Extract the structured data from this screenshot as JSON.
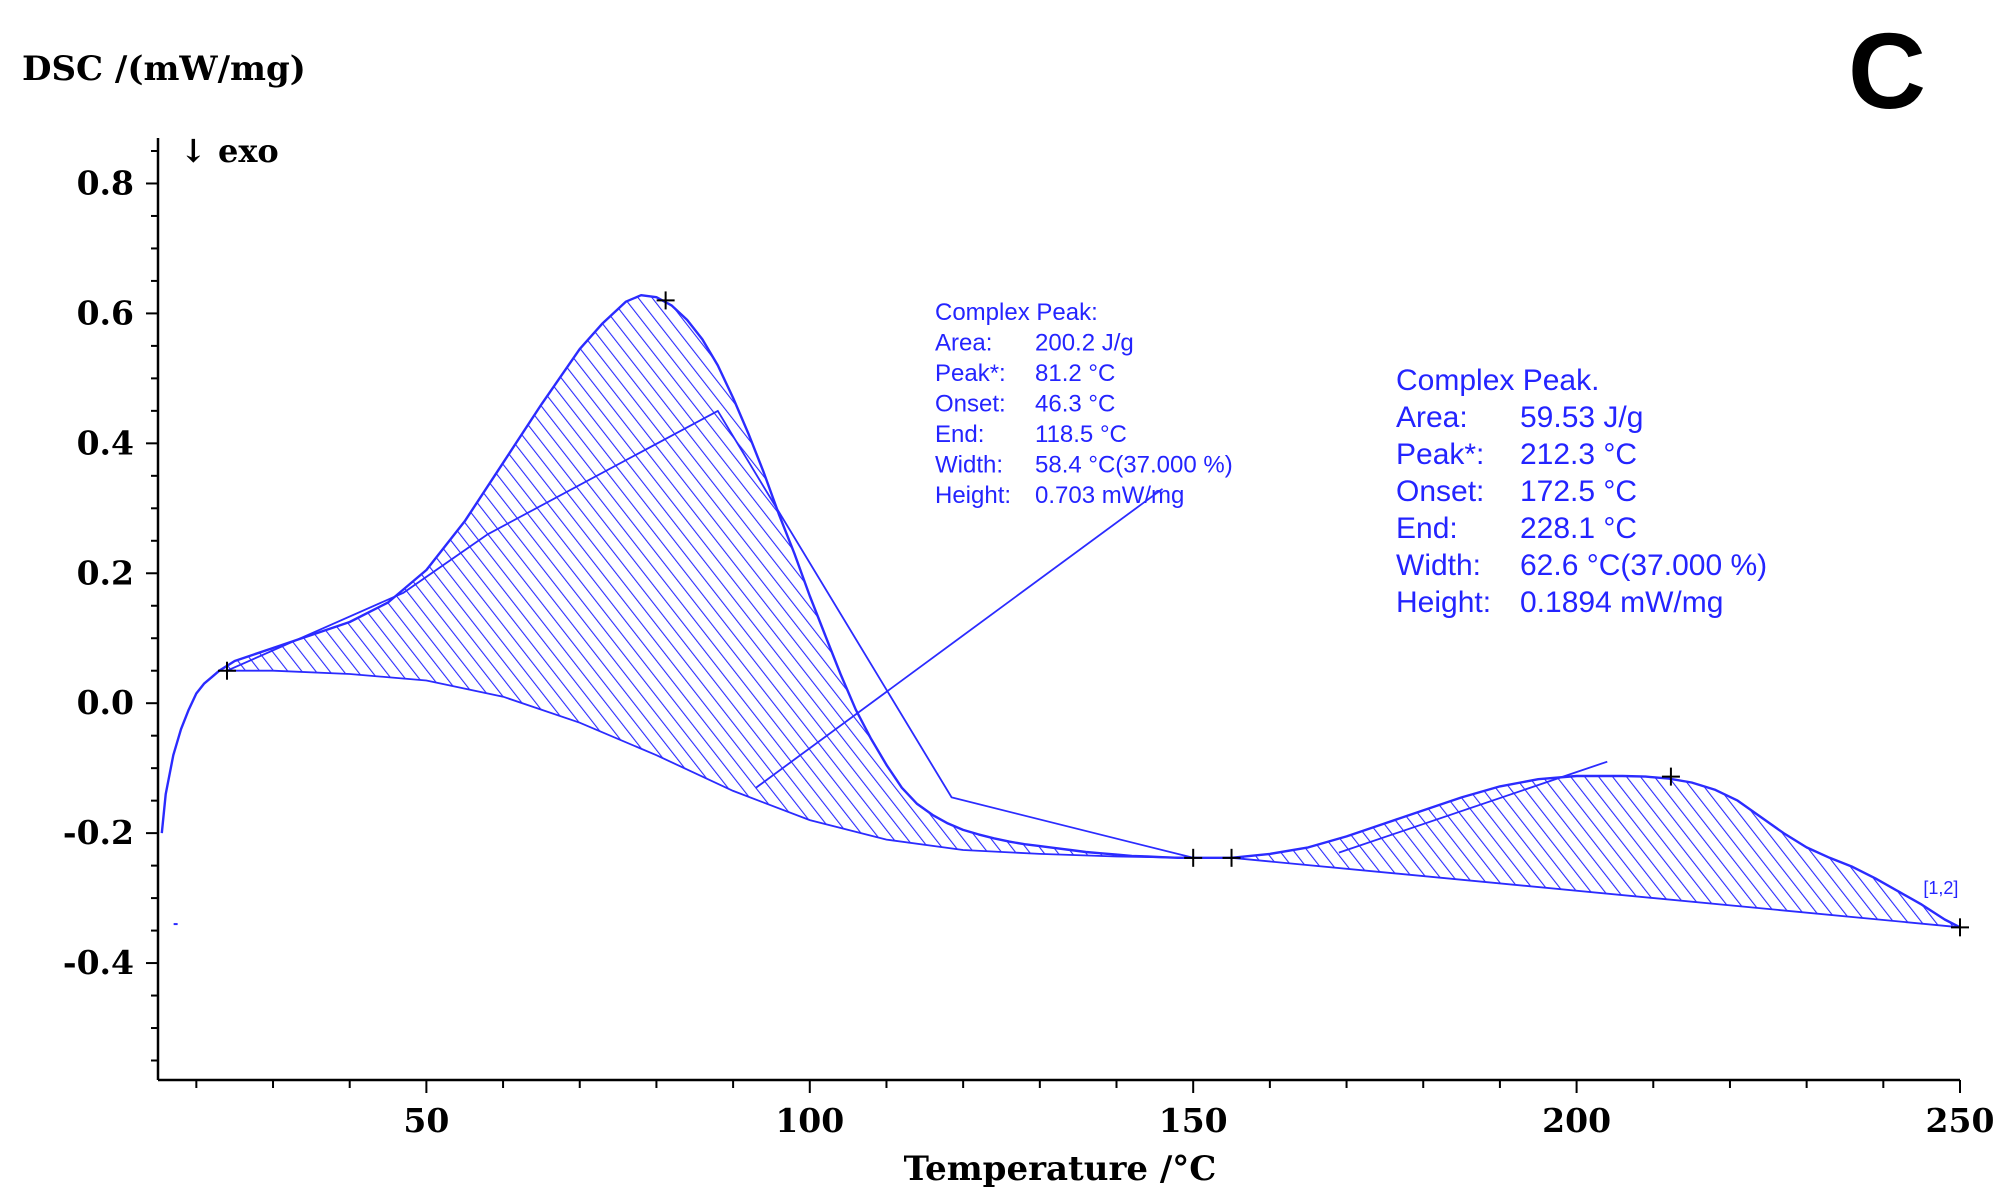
{
  "chart_data": {
    "type": "line",
    "panel_label": "C",
    "title": "",
    "ylabel": "DSC /(mW/mg)",
    "xlabel": "Temperature /°C",
    "exo_marker": "↓ exo",
    "xlim": [
      15,
      250
    ],
    "ylim": [
      -0.58,
      0.87
    ],
    "x_ticks": [
      50,
      100,
      150,
      200,
      250
    ],
    "x_tick_labels": [
      "50",
      "100",
      "150",
      "200",
      "250"
    ],
    "x_minor_step": 10,
    "y_ticks": [
      0.8,
      0.6,
      0.4,
      0.2,
      0.0,
      -0.2,
      -0.4
    ],
    "y_tick_labels": [
      "0.8",
      "0.6",
      "0.4",
      "0.2",
      "0.0",
      "-0.2",
      "-0.4"
    ],
    "y_minor_step": 0.05,
    "line_color": "#2b2bff",
    "text_color": "#2424ff",
    "axis_color": "#000000",
    "series": [
      {
        "name": "DSC curve",
        "x": [
          15.5,
          16,
          17,
          18,
          19,
          20,
          21,
          22,
          23,
          25,
          30,
          35,
          40,
          45,
          50,
          55,
          60,
          65,
          70,
          73,
          76,
          78,
          80,
          82,
          84,
          86,
          88,
          90,
          92,
          94,
          96,
          98,
          100,
          102,
          104,
          106,
          108,
          110,
          112,
          114,
          116,
          118,
          120,
          122,
          124,
          126,
          128,
          130,
          132,
          134,
          136,
          138,
          140,
          142,
          144,
          146,
          148,
          150,
          152,
          155,
          160,
          165,
          170,
          175,
          180,
          185,
          190,
          195,
          200,
          203,
          206,
          209,
          212,
          215,
          218,
          221,
          224,
          227,
          230,
          233,
          236,
          239,
          242,
          245,
          248,
          250
        ],
        "y": [
          -0.2,
          -0.14,
          -0.08,
          -0.04,
          -0.01,
          0.015,
          0.03,
          0.04,
          0.05,
          0.065,
          0.085,
          0.105,
          0.125,
          0.155,
          0.205,
          0.28,
          0.37,
          0.46,
          0.545,
          0.585,
          0.618,
          0.628,
          0.625,
          0.612,
          0.59,
          0.56,
          0.52,
          0.47,
          0.415,
          0.355,
          0.29,
          0.23,
          0.165,
          0.105,
          0.045,
          -0.01,
          -0.055,
          -0.095,
          -0.13,
          -0.155,
          -0.172,
          -0.185,
          -0.195,
          -0.202,
          -0.208,
          -0.213,
          -0.217,
          -0.22,
          -0.223,
          -0.226,
          -0.229,
          -0.231,
          -0.233,
          -0.235,
          -0.236,
          -0.237,
          -0.238,
          -0.238,
          -0.238,
          -0.238,
          -0.232,
          -0.222,
          -0.205,
          -0.185,
          -0.165,
          -0.145,
          -0.128,
          -0.117,
          -0.112,
          -0.112,
          -0.112,
          -0.113,
          -0.116,
          -0.122,
          -0.133,
          -0.15,
          -0.175,
          -0.2,
          -0.222,
          -0.238,
          -0.252,
          -0.27,
          -0.29,
          -0.31,
          -0.333,
          -0.345
        ]
      }
    ],
    "baselines": [
      {
        "name": "Peak 1 baseline",
        "x": [
          24,
          30,
          40,
          50,
          60,
          70,
          80,
          90,
          100,
          110,
          120,
          130,
          140,
          150
        ],
        "y": [
          0.05,
          0.05,
          0.045,
          0.035,
          0.01,
          -0.03,
          -0.08,
          -0.135,
          -0.18,
          -0.21,
          -0.226,
          -0.232,
          -0.236,
          -0.238
        ]
      },
      {
        "name": "Peak 1 partition",
        "x": [
          24,
          47,
          58,
          88,
          118.5,
          150
        ],
        "y": [
          0.05,
          0.17,
          0.26,
          0.45,
          -0.145,
          -0.238
        ]
      },
      {
        "name": "Peak 2 baseline",
        "x": [
          155,
          250
        ],
        "y": [
          -0.238,
          -0.345
        ]
      }
    ],
    "shaded_regions": [
      {
        "name": "Peak 1 area",
        "x_from": 24,
        "x_to": 150
      },
      {
        "name": "Peak 2 area",
        "x_from": 155,
        "x_to": 250
      }
    ],
    "markers": [
      {
        "label": "peak-1-start",
        "x": 24,
        "y": 0.05
      },
      {
        "label": "peak-1-max",
        "x": 81.2,
        "y": 0.62
      },
      {
        "label": "peak-1-end",
        "x": 150,
        "y": -0.238
      },
      {
        "label": "peak-2-start",
        "x": 155,
        "y": -0.238
      },
      {
        "label": "peak-2-max",
        "x": 212.3,
        "y": -0.113
      },
      {
        "label": "peak-2-end",
        "x": 250,
        "y": -0.345
      }
    ],
    "stray_marks": [
      {
        "x": 17.3,
        "y": -0.34
      }
    ],
    "annotations": [
      {
        "name": "complex-peak-1",
        "lines": [
          {
            "label": "Complex Peak:",
            "value": ""
          },
          {
            "label": "Area:",
            "value": "200.2 J/g"
          },
          {
            "label": "Peak*:",
            "value": "81.2 °C"
          },
          {
            "label": "Onset:",
            "value": "46.3 °C"
          },
          {
            "label": "End:",
            "value": "118.5 °C"
          },
          {
            "label": "Width:",
            "value": "58.4 °C(37.000 %)"
          },
          {
            "label": "Height:",
            "value": "0.703 mW/mg"
          }
        ],
        "leader_from": [
          146,
          0.33
        ],
        "leader_to": [
          93,
          -0.13
        ]
      },
      {
        "name": "complex-peak-2",
        "lines": [
          {
            "label": "Complex Peak.",
            "value": ""
          },
          {
            "label": "Area:",
            "value": "59.53 J/g"
          },
          {
            "label": "Peak*:",
            "value": "212.3 °C"
          },
          {
            "label": "Onset:",
            "value": "172.5 °C"
          },
          {
            "label": "End:",
            "value": "228.1 °C"
          },
          {
            "label": "Width:",
            "value": "62.6 °C(37.000 %)"
          },
          {
            "label": "Height:",
            "value": "0.1894 mW/mg"
          }
        ],
        "leader_from": [
          204,
          -0.09
        ],
        "leader_to": [
          169,
          -0.23
        ]
      }
    ],
    "segment_label": {
      "text": "[1,2]",
      "x": 246,
      "y": -0.3
    }
  }
}
